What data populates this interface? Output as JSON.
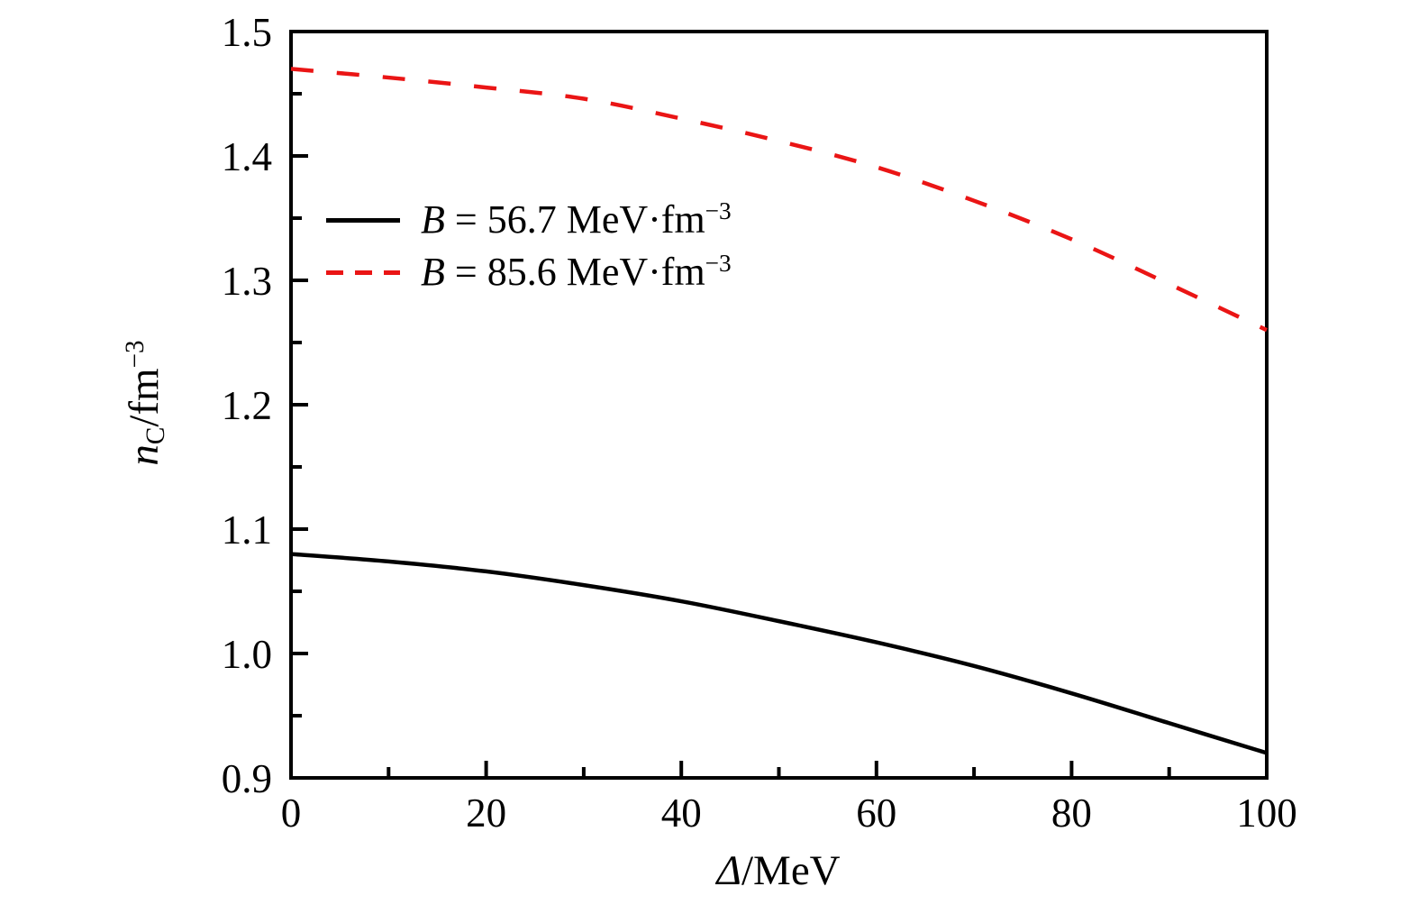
{
  "figure": {
    "background": "#ffffff",
    "axis_color": "#000000",
    "text_color": "#000000"
  },
  "chart_data": {
    "type": "line",
    "title": "",
    "xlabel": "Δ/MeV",
    "xlabel_var": "Δ",
    "xlabel_rest": "/MeV",
    "ylabel": "n_C/fm^−3",
    "ylabel_var": "n",
    "ylabel_sub": "C",
    "ylabel_rest": "/fm",
    "ylabel_sup": "−3",
    "xlim": [
      0,
      100
    ],
    "ylim": [
      0.9,
      1.5
    ],
    "grid": false,
    "legend_position": "upper left inside",
    "x_major_ticks": [
      0,
      20,
      40,
      60,
      80,
      100
    ],
    "x_tick_labels": [
      "0",
      "20",
      "40",
      "60",
      "80",
      "100"
    ],
    "x_minor_ticks": [
      10,
      30,
      50,
      70,
      90
    ],
    "y_major_ticks": [
      0.9,
      1.0,
      1.1,
      1.2,
      1.3,
      1.4,
      1.5
    ],
    "y_tick_labels": [
      "0.9",
      "1.0",
      "1.1",
      "1.2",
      "1.3",
      "1.4",
      "1.5"
    ],
    "y_minor_ticks": [
      0.95,
      1.05,
      1.15,
      1.25,
      1.35,
      1.45
    ],
    "x": [
      0,
      10,
      20,
      30,
      40,
      50,
      60,
      70,
      80,
      90,
      100
    ],
    "series": [
      {
        "label": "B = 56.7 MeV·fm−3",
        "label_var": "B",
        "label_main": " = 56.7 MeV·fm",
        "label_sup": "−3",
        "color": "#000000",
        "style": "solid",
        "values": [
          1.08,
          1.074,
          1.066,
          1.055,
          1.042,
          1.026,
          1.009,
          0.99,
          0.968,
          0.944,
          0.92
        ]
      },
      {
        "label": "B = 85.6 MeV·fm−3",
        "label_var": "B",
        "label_main": " = 85.6 MeV·fm",
        "label_sup": "−3",
        "color": "#ea1515",
        "style": "dashed",
        "values": [
          1.47,
          1.463,
          1.455,
          1.446,
          1.43,
          1.412,
          1.391,
          1.364,
          1.333,
          1.297,
          1.26
        ]
      }
    ]
  }
}
